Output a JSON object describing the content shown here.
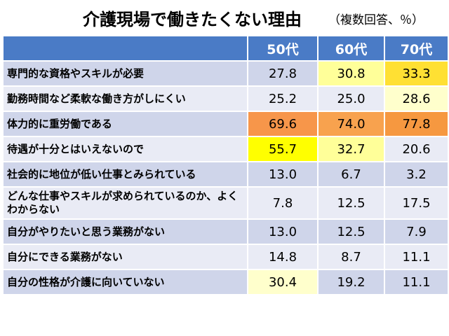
{
  "header": {
    "title": "介護現場で働きたくない理由",
    "subtitle": "（複数回答、％）"
  },
  "table": {
    "columns": [
      "50代",
      "60代",
      "70代"
    ],
    "rows": [
      {
        "label": "専門的な資格やスキルが必要",
        "values": [
          "27.8",
          "30.8",
          "33.3"
        ],
        "fills": [
          "#cfd5ea",
          "#ffff99",
          "#ffe033"
        ],
        "label_fill": "#cfd5ea"
      },
      {
        "label": "勤務時間など柔軟な働き方がしにくい",
        "values": [
          "25.2",
          "25.0",
          "28.6"
        ],
        "fills": [
          "#e9ebf5",
          "#e9ebf5",
          "#ffffcc"
        ],
        "label_fill": "#e9ebf5"
      },
      {
        "label": "体力的に重労働である",
        "values": [
          "69.6",
          "74.0",
          "77.8"
        ],
        "fills": [
          "#f7964a",
          "#f8a24e",
          "#f69840"
        ],
        "label_fill": "#cfd5ea"
      },
      {
        "label": "待遇が十分とはいえないので",
        "values": [
          "55.7",
          "32.7",
          "20.6"
        ],
        "fills": [
          "#ffff00",
          "#ffff99",
          "#e9ebf5"
        ],
        "label_fill": "#e9ebf5"
      },
      {
        "label": "社会的に地位が低い仕事とみられている",
        "values": [
          "13.0",
          "6.7",
          "3.2"
        ],
        "fills": [
          "#cfd5ea",
          "#cfd5ea",
          "#cfd5ea"
        ],
        "label_fill": "#cfd5ea"
      },
      {
        "label": "どんな仕事やスキルが求められているのか、よくわからない",
        "values": [
          "7.8",
          "12.5",
          "17.5"
        ],
        "fills": [
          "#e9ebf5",
          "#e9ebf5",
          "#e9ebf5"
        ],
        "label_fill": "#e9ebf5"
      },
      {
        "label": "自分がやりたいと思う業務がない",
        "values": [
          "13.0",
          "12.5",
          "7.9"
        ],
        "fills": [
          "#cfd5ea",
          "#cfd5ea",
          "#cfd5ea"
        ],
        "label_fill": "#cfd5ea"
      },
      {
        "label": "自分にできる業務がない",
        "values": [
          "14.8",
          "8.7",
          "11.1"
        ],
        "fills": [
          "#e9ebf5",
          "#e9ebf5",
          "#e9ebf5"
        ],
        "label_fill": "#e9ebf5"
      },
      {
        "label": "自分の性格が介護に向いていない",
        "values": [
          "30.4",
          "19.2",
          "11.1"
        ],
        "fills": [
          "#ffffcc",
          "#cfd5ea",
          "#cfd5ea"
        ],
        "label_fill": "#cfd5ea"
      }
    ]
  }
}
